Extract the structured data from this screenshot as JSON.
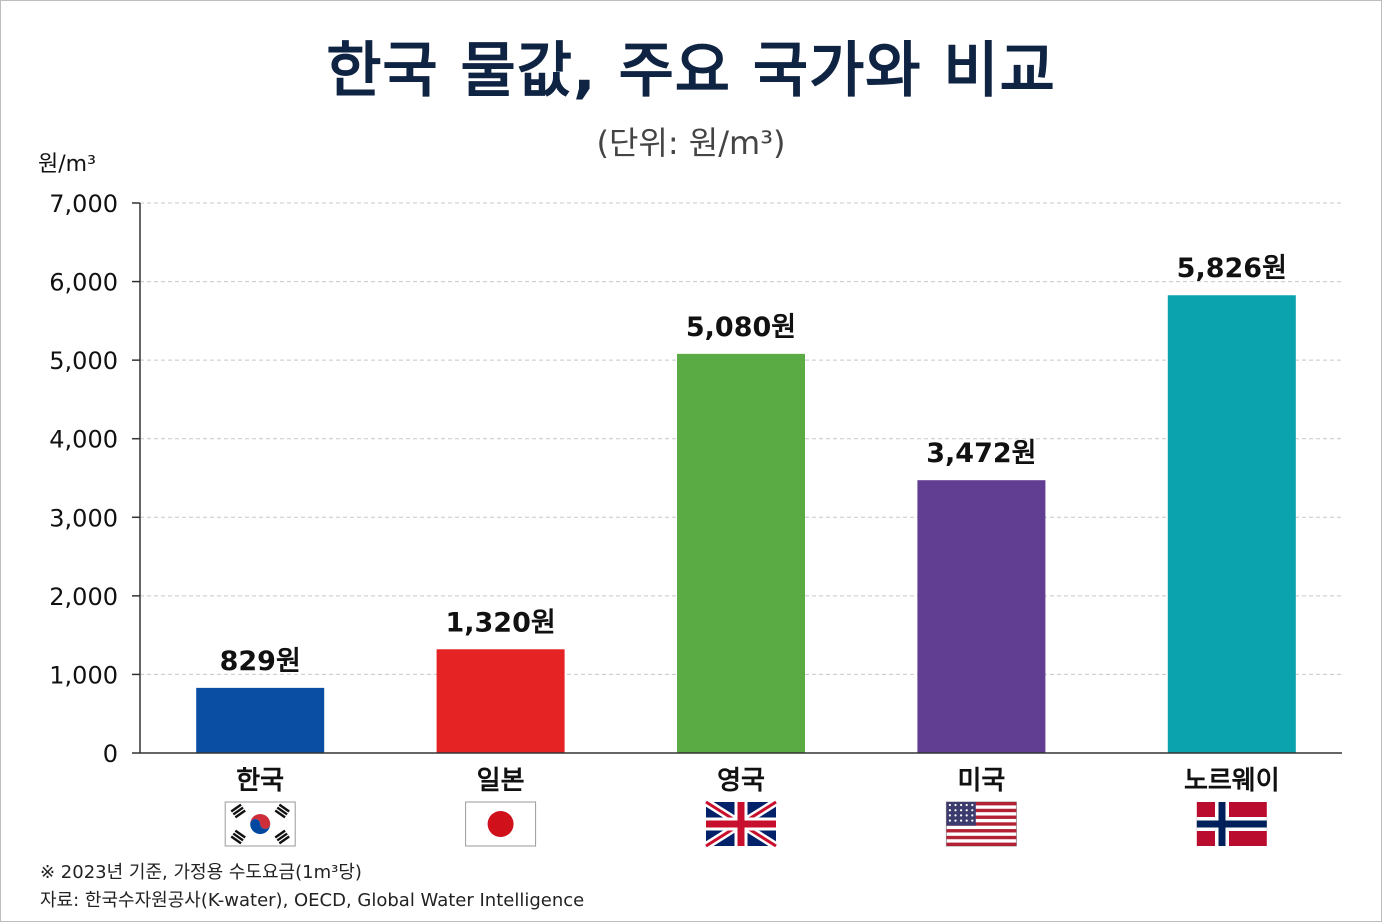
{
  "chart_data": {
    "type": "bar",
    "title": "한국 물값, 주요 국가와 비교",
    "subtitle": "(단위: 원/m³)",
    "ylabel": "원/m³",
    "categories": [
      "한국",
      "일본",
      "영국",
      "미국",
      "노르웨이"
    ],
    "values": [
      829,
      1320,
      5080,
      3472,
      5826
    ],
    "data_labels": [
      "829원",
      "1,320원",
      "5,080원",
      "3,472원",
      "5,826원"
    ],
    "colors": [
      "#0a4ea3",
      "#e52325",
      "#5aab44",
      "#613e91",
      "#0aa3ae"
    ],
    "flags": [
      "south-korea-flag",
      "japan-flag",
      "uk-flag",
      "usa-flag",
      "norway-flag"
    ],
    "ylim": [
      0,
      7000
    ],
    "yticks": [
      0,
      1000,
      2000,
      3000,
      4000,
      5000,
      6000,
      7000
    ],
    "ytick_labels": [
      "0",
      "1,000",
      "2,000",
      "3,000",
      "4,000",
      "5,000",
      "6,000",
      "7,000"
    ],
    "grid": true,
    "legend": "none"
  },
  "notes": {
    "footnote": "※ 2023년 기준, 가정용 수도요금(1m³당)",
    "source": "자료: 한국수자원공사(K-water), OECD, Global Water Intelligence"
  }
}
